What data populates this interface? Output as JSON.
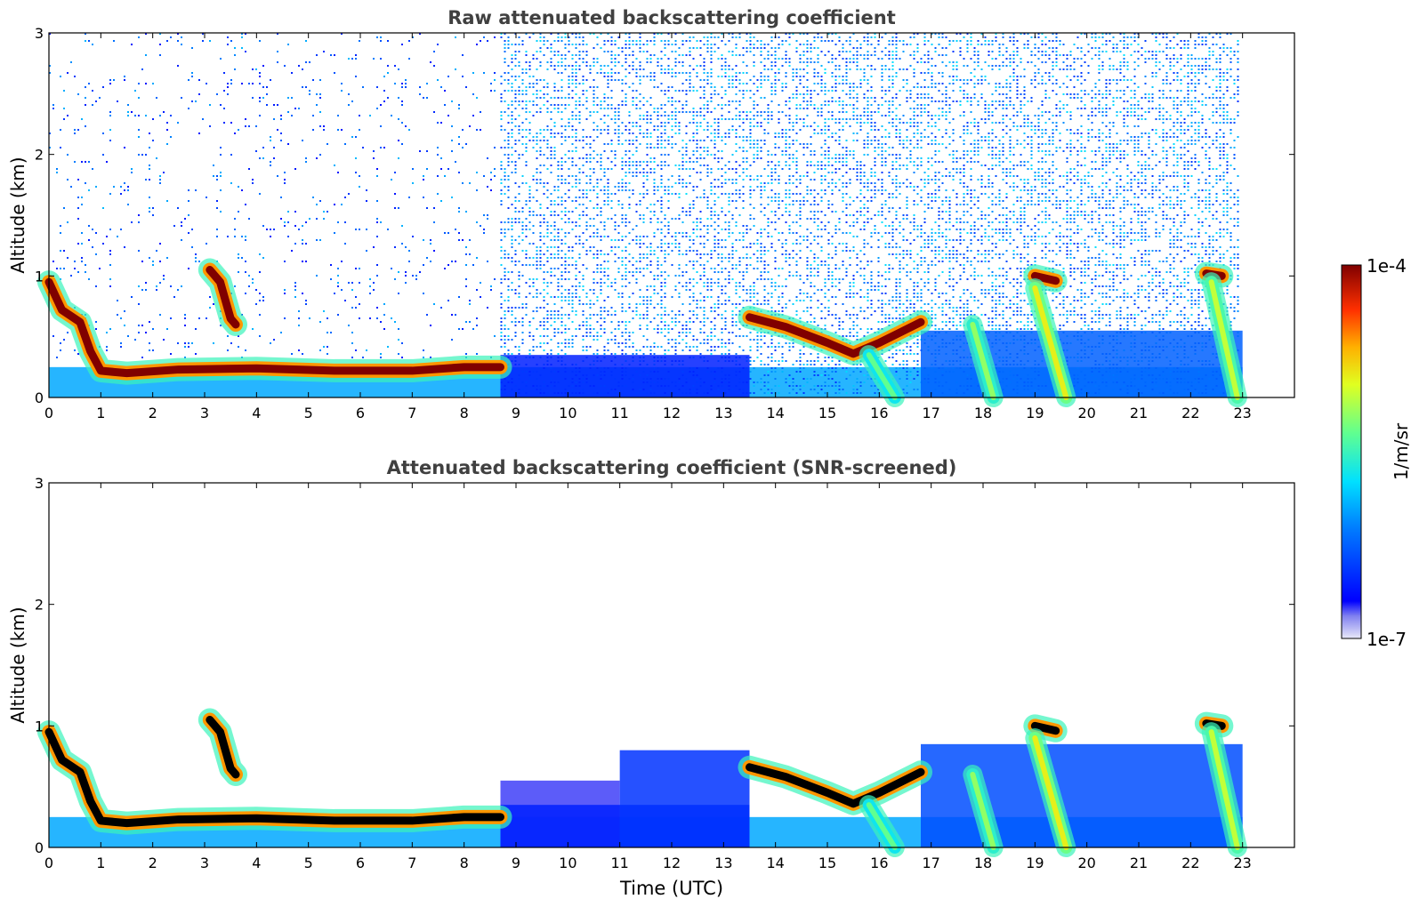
{
  "figure": {
    "colorbar": {
      "max_label": "1e-4",
      "min_label": "1e-7",
      "unit_label": "1/m/sr",
      "scale": "log",
      "colormap": "jet"
    }
  },
  "chart_data": [
    {
      "type": "heatmap",
      "title": "Raw attenuated backscattering coefficient",
      "xlabel": "",
      "ylabel": "Altitude (km)",
      "xlim": [
        0,
        24
      ],
      "ylim": [
        0,
        3
      ],
      "x_ticks": [
        "0",
        "1",
        "2",
        "3",
        "4",
        "5",
        "6",
        "7",
        "8",
        "9",
        "10",
        "11",
        "12",
        "13",
        "14",
        "15",
        "16",
        "17",
        "18",
        "19",
        "20",
        "21",
        "22",
        "23"
      ],
      "y_ticks": [
        "0",
        "1",
        "2",
        "3"
      ],
      "data_end_time": 23.0,
      "layers": [
        {
          "kind": "strong_layer",
          "level": 1.0,
          "points": [
            [
              0.0,
              0.95
            ],
            [
              0.25,
              0.72
            ],
            [
              0.6,
              0.62
            ],
            [
              0.8,
              0.38
            ],
            [
              1.0,
              0.22
            ],
            [
              1.5,
              0.2
            ],
            [
              2.5,
              0.23
            ],
            [
              4.0,
              0.24
            ],
            [
              5.5,
              0.22
            ],
            [
              7.0,
              0.22
            ],
            [
              8.0,
              0.25
            ],
            [
              8.7,
              0.25
            ]
          ]
        },
        {
          "kind": "strong_layer",
          "level": 1.0,
          "points": [
            [
              3.1,
              1.05
            ],
            [
              3.3,
              0.95
            ],
            [
              3.5,
              0.65
            ],
            [
              3.6,
              0.6
            ]
          ]
        },
        {
          "kind": "strong_layer",
          "level": 1.0,
          "points": [
            [
              13.5,
              0.66
            ],
            [
              14.2,
              0.58
            ],
            [
              15.0,
              0.45
            ],
            [
              15.5,
              0.36
            ],
            [
              16.0,
              0.45
            ],
            [
              16.8,
              0.62
            ]
          ]
        },
        {
          "kind": "strong_layer",
          "level": 1.0,
          "points": [
            [
              19.0,
              1.0
            ],
            [
              19.4,
              0.96
            ]
          ]
        },
        {
          "kind": "strong_layer",
          "level": 1.0,
          "points": [
            [
              22.3,
              1.02
            ],
            [
              22.6,
              1.0
            ]
          ]
        },
        {
          "kind": "precip_streak",
          "level": 0.7,
          "points": [
            [
              19.0,
              0.9
            ],
            [
              19.6,
              0.0
            ]
          ]
        },
        {
          "kind": "precip_streak",
          "level": 0.65,
          "points": [
            [
              22.4,
              0.95
            ],
            [
              22.9,
              0.0
            ]
          ]
        },
        {
          "kind": "precip_streak",
          "level": 0.6,
          "points": [
            [
              17.8,
              0.6
            ],
            [
              18.2,
              0.0
            ]
          ]
        },
        {
          "kind": "precip_streak",
          "level": 0.55,
          "points": [
            [
              15.8,
              0.35
            ],
            [
              16.3,
              0.0
            ]
          ]
        }
      ],
      "regions": [
        {
          "kind": "surface_aerosol",
          "x": [
            0,
            23
          ],
          "y": [
            0,
            0.25
          ],
          "level": 0.35
        },
        {
          "kind": "noise_low",
          "x": [
            0,
            8.7
          ],
          "y": [
            0.3,
            3.0
          ],
          "level": 0.25,
          "density": 0.08
        },
        {
          "kind": "noise_high",
          "x": [
            8.7,
            23
          ],
          "y": [
            0.0,
            3.0
          ],
          "level": 0.3,
          "density": 0.45
        },
        {
          "kind": "boundary_layer",
          "x": [
            8.7,
            13.5
          ],
          "y": [
            0.0,
            0.35
          ],
          "level": 0.15
        },
        {
          "kind": "boundary_layer",
          "x": [
            16.8,
            23
          ],
          "y": [
            0.0,
            0.55
          ],
          "level": 0.25
        }
      ]
    },
    {
      "type": "heatmap",
      "title": "Attenuated backscattering coefficient (SNR-screened)",
      "xlabel": "Time (UTC)",
      "ylabel": "Altitude (km)",
      "xlim": [
        0,
        24
      ],
      "ylim": [
        0,
        3
      ],
      "x_ticks": [
        "0",
        "1",
        "2",
        "3",
        "4",
        "5",
        "6",
        "7",
        "8",
        "9",
        "10",
        "11",
        "12",
        "13",
        "14",
        "15",
        "16",
        "17",
        "18",
        "19",
        "20",
        "21",
        "22",
        "23"
      ],
      "y_ticks": [
        "0",
        "1",
        "2",
        "3"
      ],
      "data_end_time": 23.0,
      "saturated_color": "#000000",
      "layers": [
        {
          "kind": "strong_layer",
          "level": 1.05,
          "points": [
            [
              0.0,
              0.95
            ],
            [
              0.25,
              0.72
            ],
            [
              0.6,
              0.62
            ],
            [
              0.8,
              0.38
            ],
            [
              1.0,
              0.22
            ],
            [
              1.5,
              0.2
            ],
            [
              2.5,
              0.23
            ],
            [
              4.0,
              0.24
            ],
            [
              5.5,
              0.22
            ],
            [
              7.0,
              0.22
            ],
            [
              8.0,
              0.25
            ],
            [
              8.7,
              0.25
            ]
          ]
        },
        {
          "kind": "strong_layer",
          "level": 1.05,
          "points": [
            [
              3.1,
              1.05
            ],
            [
              3.3,
              0.95
            ],
            [
              3.5,
              0.65
            ],
            [
              3.6,
              0.6
            ]
          ]
        },
        {
          "kind": "strong_layer",
          "level": 1.05,
          "points": [
            [
              13.5,
              0.66
            ],
            [
              14.2,
              0.58
            ],
            [
              15.0,
              0.45
            ],
            [
              15.5,
              0.36
            ],
            [
              16.0,
              0.45
            ],
            [
              16.8,
              0.62
            ]
          ]
        },
        {
          "kind": "strong_layer",
          "level": 1.05,
          "points": [
            [
              19.0,
              1.0
            ],
            [
              19.4,
              0.96
            ]
          ]
        },
        {
          "kind": "strong_layer",
          "level": 1.05,
          "points": [
            [
              22.3,
              1.02
            ],
            [
              22.6,
              1.0
            ]
          ]
        },
        {
          "kind": "precip_streak",
          "level": 0.7,
          "points": [
            [
              19.0,
              0.9
            ],
            [
              19.6,
              0.0
            ]
          ]
        },
        {
          "kind": "precip_streak",
          "level": 0.65,
          "points": [
            [
              22.4,
              0.95
            ],
            [
              22.9,
              0.0
            ]
          ]
        },
        {
          "kind": "precip_streak",
          "level": 0.6,
          "points": [
            [
              17.8,
              0.6
            ],
            [
              18.2,
              0.0
            ]
          ]
        },
        {
          "kind": "precip_streak",
          "level": 0.55,
          "points": [
            [
              15.8,
              0.35
            ],
            [
              16.3,
              0.0
            ]
          ]
        }
      ],
      "regions": [
        {
          "kind": "surface_aerosol",
          "x": [
            0,
            23
          ],
          "y": [
            0,
            0.25
          ],
          "level": 0.35
        },
        {
          "kind": "screened_haze",
          "x": [
            8.7,
            11.0
          ],
          "y": [
            0.0,
            0.55
          ],
          "level": 0.08
        },
        {
          "kind": "boundary_layer",
          "x": [
            8.7,
            13.5
          ],
          "y": [
            0.0,
            0.35
          ],
          "level": 0.15
        },
        {
          "kind": "boundary_layer",
          "x": [
            11.0,
            13.5
          ],
          "y": [
            0.0,
            0.8
          ],
          "level": 0.18
        },
        {
          "kind": "boundary_layer",
          "x": [
            16.8,
            23
          ],
          "y": [
            0.0,
            0.85
          ],
          "level": 0.22
        }
      ]
    }
  ]
}
